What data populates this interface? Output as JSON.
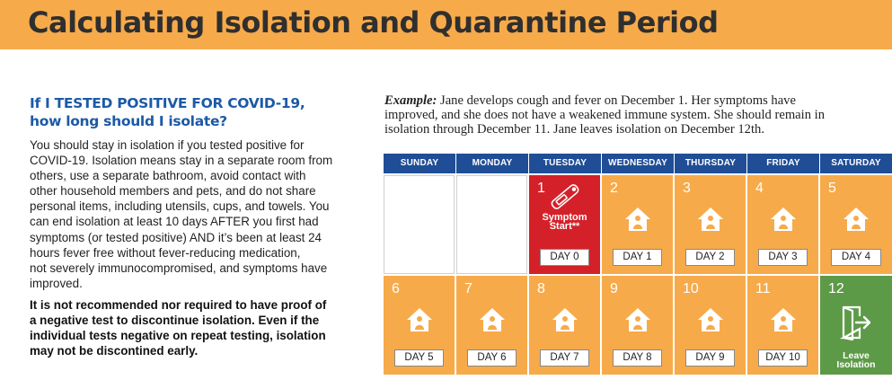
{
  "title": "Calculating Isolation and Quarantine Period",
  "question": {
    "lines": [
      "If I TESTED POSITIVE FOR COVID-19,",
      "how long should I isolate?"
    ]
  },
  "body_lines": [
    "You should stay in isolation if you tested positive for",
    "COVID-19. Isolation means stay in a separate room from",
    "others, use a separate bathroom, avoid contact with",
    "other household members and pets, and do not share",
    "personal items, including utensils, cups, and towels. You",
    "can end isolation at least 10 days AFTER you first had",
    "symptoms (or tested positive) AND it’s been at least 24",
    "hours fever free without fever-reducing medication,",
    "not severely immunocompromised, and symptoms have",
    "improved."
  ],
  "bold_lines": [
    "It is not recommended nor required to have proof of",
    "a negative test to discontinue isolation. Even if the",
    "individual tests negative on repeat testing, isolation",
    "may not be discontined early."
  ],
  "example": {
    "label": "Example:",
    "lines": [
      " Jane develops cough and fever on December 1. Her symptoms have",
      "improved, and she does not have a weakened immune system. She should remain in",
      "isolation through December 11. Jane leaves isolation on December 12th."
    ]
  },
  "calendar": {
    "days": [
      "SUNDAY",
      "MONDAY",
      "TUESDAY",
      "WEDNESDAY",
      "THURSDAY",
      "FRIDAY",
      "SATURDAY"
    ],
    "week1": [
      {
        "num": "",
        "kind": "empty"
      },
      {
        "num": "",
        "kind": "empty"
      },
      {
        "num": "1",
        "kind": "symptom",
        "label": "DAY 0",
        "symptom_lines": [
          "Symptom",
          "Start**"
        ]
      },
      {
        "num": "2",
        "kind": "home",
        "label": "DAY 1"
      },
      {
        "num": "3",
        "kind": "home",
        "label": "DAY 2"
      },
      {
        "num": "4",
        "kind": "home",
        "label": "DAY 3"
      },
      {
        "num": "5",
        "kind": "home",
        "label": "DAY 4"
      }
    ],
    "week2": [
      {
        "num": "6",
        "kind": "home",
        "label": "DAY 5"
      },
      {
        "num": "7",
        "kind": "home",
        "label": "DAY 6"
      },
      {
        "num": "8",
        "kind": "home",
        "label": "DAY 7"
      },
      {
        "num": "9",
        "kind": "home",
        "label": "DAY 8"
      },
      {
        "num": "10",
        "kind": "home",
        "label": "DAY 9"
      },
      {
        "num": "11",
        "kind": "home",
        "label": "DAY 10"
      },
      {
        "num": "12",
        "kind": "leave",
        "leave_lines": [
          "Leave",
          "Isolation"
        ]
      }
    ]
  },
  "colors": {
    "banner": "#f7aa4a",
    "heading_blue": "#1c5aa6",
    "calendar_header": "#1f4e96",
    "isolation_day": "#f7aa4a",
    "symptom_day": "#d42129",
    "leave_day": "#5d9a47"
  },
  "icons": {
    "isolation": "house-person-icon",
    "symptom": "thermometer-icon",
    "leave": "exit-door-icon"
  }
}
